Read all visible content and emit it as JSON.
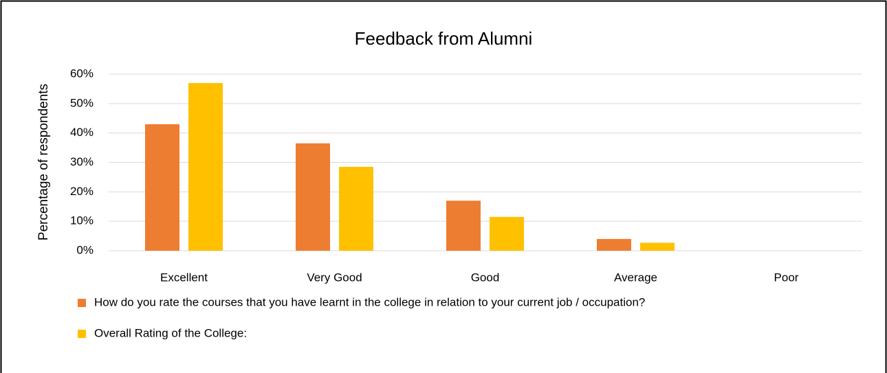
{
  "chart_data": {
    "type": "bar",
    "title": "Feedback from Alumni",
    "y_label": "Percentage of respondents",
    "categories": [
      "Excellent",
      "Very Good",
      "Good",
      "Average",
      "Poor"
    ],
    "series": [
      {
        "name": "How do you rate the courses that you have learnt in the college in relation to your current job / occupation?",
        "color": "#ed7d31",
        "values": [
          43,
          36.5,
          17,
          4,
          0
        ]
      },
      {
        "name": "Overall Rating of the College:",
        "color": "#ffc000",
        "values": [
          57,
          28.5,
          11.5,
          2.7,
          0
        ]
      }
    ],
    "ylim": [
      0,
      60
    ],
    "yticks": [
      {
        "value": 0,
        "label": "0%"
      },
      {
        "value": 10,
        "label": "10%"
      },
      {
        "value": 20,
        "label": "20%"
      },
      {
        "value": 30,
        "label": "30%"
      },
      {
        "value": 40,
        "label": "40%"
      },
      {
        "value": 50,
        "label": "50%"
      },
      {
        "value": 60,
        "label": "60%"
      }
    ],
    "grid": true,
    "legend": "bottom"
  }
}
